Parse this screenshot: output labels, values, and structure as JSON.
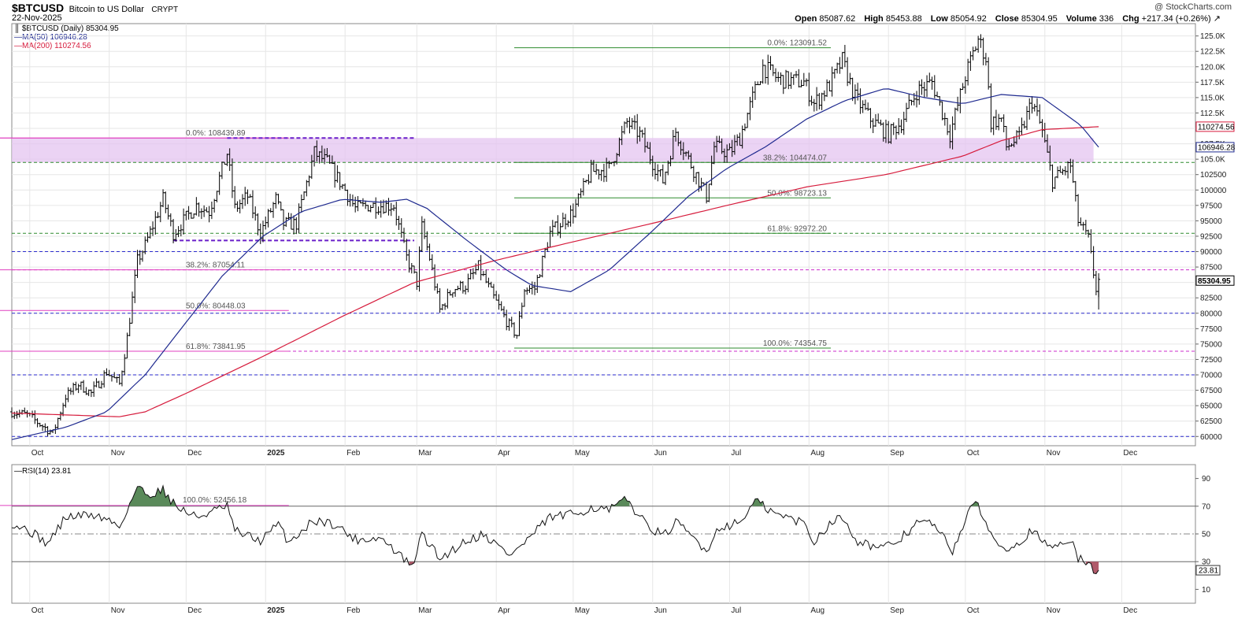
{
  "header": {
    "symbol": "$BTCUSD",
    "description": "Bitcoin to US Dollar",
    "exchange": "CRYPT",
    "date": "22-Nov-2025",
    "brand": "@ StockCharts.com",
    "open_label": "Open",
    "open": "85087.62",
    "high_label": "High",
    "high": "85453.88",
    "low_label": "Low",
    "low": "85054.92",
    "close_label": "Close",
    "close": "85304.95",
    "volume_label": "Volume",
    "volume": "336",
    "chg_label": "Chg",
    "chg": "+217.34 (+0.26%)",
    "chg_arrow": "up-arrow-icon"
  },
  "legend": {
    "price": "$BTCUSD (Daily) 85304.95",
    "ma50": "MA(50) 106946.28",
    "ma200": "MA(200) 110274.56",
    "rsi": "RSI(14) 23.81"
  },
  "colors": {
    "price_bars": "#000000",
    "ma50": "#1f2a8f",
    "ma200": "#d61b3c",
    "fib_left": "#e040c0",
    "fib_right": "#2e8b2e",
    "dash_blue": "#2a2acd",
    "dash_green": "#2e8b2e",
    "dash_magenta": "#cc2ccc",
    "zone": "#e4c4f0",
    "rsi_over": "#5a8a5a",
    "rsi_under": "#b05a6a"
  },
  "chart_data": [
    {
      "type": "ohlc",
      "title": "$BTCUSD (Daily) 85304.95",
      "ylim": [
        58500,
        127000
      ],
      "y_ticks": [
        60000,
        62500,
        65000,
        67500,
        70000,
        72500,
        75000,
        77500,
        80000,
        82500,
        85000,
        87500,
        90000,
        92500,
        95000,
        97500,
        100000,
        102500,
        105000,
        107500,
        110000,
        112500,
        115000,
        117500,
        120000,
        122500,
        125000
      ],
      "y_tick_labels": [
        "60000",
        "62500",
        "65000",
        "67500",
        "70000",
        "72500",
        "75000",
        "77500",
        "80000",
        "82500",
        "85000",
        "87500",
        "90000",
        "92500",
        "95000",
        "97500",
        "100000",
        "102500",
        "105.0K",
        "107.5K",
        "110.0K",
        "112.5K",
        "115.0K",
        "117.5K",
        "120.0K",
        "122.5K",
        "125.0K"
      ],
      "x_range": [
        "2024-09-24",
        "2025-12-15"
      ],
      "x_tick_labels": [
        {
          "date": "2024-10-01",
          "label": "Oct"
        },
        {
          "date": "2024-11-01",
          "label": "Nov"
        },
        {
          "date": "2024-12-01",
          "label": "Dec"
        },
        {
          "date": "2025-01-01",
          "label": "2025"
        },
        {
          "date": "2025-02-01",
          "label": "Feb"
        },
        {
          "date": "2025-03-01",
          "label": "Mar"
        },
        {
          "date": "2025-04-01",
          "label": "Apr"
        },
        {
          "date": "2025-05-01",
          "label": "May"
        },
        {
          "date": "2025-06-01",
          "label": "Jun"
        },
        {
          "date": "2025-07-01",
          "label": "Jul"
        },
        {
          "date": "2025-08-01",
          "label": "Aug"
        },
        {
          "date": "2025-09-01",
          "label": "Sep"
        },
        {
          "date": "2025-10-01",
          "label": "Oct"
        },
        {
          "date": "2025-11-01",
          "label": "Nov"
        },
        {
          "date": "2025-12-01",
          "label": "Dec"
        }
      ],
      "last_date": "2025-11-22",
      "close_keypoints": [
        [
          "2024-09-24",
          64000
        ],
        [
          "2024-09-30",
          63500
        ],
        [
          "2024-10-05",
          62000
        ],
        [
          "2024-10-10",
          60500
        ],
        [
          "2024-10-15",
          66500
        ],
        [
          "2024-10-20",
          68500
        ],
        [
          "2024-10-25",
          67000
        ],
        [
          "2024-10-31",
          70500
        ],
        [
          "2024-11-05",
          68500
        ],
        [
          "2024-11-08",
          76000
        ],
        [
          "2024-11-12",
          88500
        ],
        [
          "2024-11-15",
          91000
        ],
        [
          "2024-11-22",
          98500
        ],
        [
          "2024-11-26",
          93000
        ],
        [
          "2024-12-05",
          97500
        ],
        [
          "2024-12-10",
          96500
        ],
        [
          "2024-12-17",
          106000
        ],
        [
          "2024-12-20",
          97000
        ],
        [
          "2024-12-25",
          99000
        ],
        [
          "2024-12-30",
          93000
        ],
        [
          "2025-01-05",
          98500
        ],
        [
          "2025-01-08",
          94500
        ],
        [
          "2025-01-13",
          94500
        ],
        [
          "2025-01-20",
          106000
        ],
        [
          "2025-01-25",
          104500
        ],
        [
          "2025-02-01",
          100000
        ],
        [
          "2025-02-05",
          97000
        ],
        [
          "2025-02-10",
          97500
        ],
        [
          "2025-02-20",
          97500
        ],
        [
          "2025-02-25",
          89000
        ],
        [
          "2025-03-01",
          85000
        ],
        [
          "2025-03-03",
          94000
        ],
        [
          "2025-03-06",
          89000
        ],
        [
          "2025-03-10",
          80500
        ],
        [
          "2025-03-15",
          84000
        ],
        [
          "2025-03-20",
          84500
        ],
        [
          "2025-03-25",
          87500
        ],
        [
          "2025-03-31",
          82500
        ],
        [
          "2025-04-06",
          78000
        ],
        [
          "2025-04-09",
          76500
        ],
        [
          "2025-04-12",
          84000
        ],
        [
          "2025-04-16",
          84000
        ],
        [
          "2025-04-22",
          93000
        ],
        [
          "2025-05-01",
          96500
        ],
        [
          "2025-05-08",
          103000
        ],
        [
          "2025-05-15",
          103500
        ],
        [
          "2025-05-22",
          111000
        ],
        [
          "2025-05-27",
          109000
        ],
        [
          "2025-06-01",
          104500
        ],
        [
          "2025-06-05",
          101500
        ],
        [
          "2025-06-10",
          109500
        ],
        [
          "2025-06-15",
          105000
        ],
        [
          "2025-06-22",
          99000
        ],
        [
          "2025-06-25",
          107000
        ],
        [
          "2025-07-01",
          106000
        ],
        [
          "2025-07-05",
          108500
        ],
        [
          "2025-07-14",
          120000
        ],
        [
          "2025-07-20",
          118000
        ],
        [
          "2025-07-30",
          117500
        ],
        [
          "2025-08-03",
          114000
        ],
        [
          "2025-08-09",
          117000
        ],
        [
          "2025-08-14",
          121000
        ],
        [
          "2025-08-19",
          115000
        ],
        [
          "2025-08-25",
          111500
        ],
        [
          "2025-09-01",
          109000
        ],
        [
          "2025-09-06",
          111000
        ],
        [
          "2025-09-12",
          116000
        ],
        [
          "2025-09-18",
          117500
        ],
        [
          "2025-09-25",
          109000
        ],
        [
          "2025-10-01",
          118500
        ],
        [
          "2025-10-06",
          124500
        ],
        [
          "2025-10-09",
          121500
        ],
        [
          "2025-10-11",
          111000
        ],
        [
          "2025-10-15",
          111500
        ],
        [
          "2025-10-17",
          107000
        ],
        [
          "2025-10-22",
          108500
        ],
        [
          "2025-10-27",
          114500
        ],
        [
          "2025-10-31",
          109500
        ],
        [
          "2025-11-04",
          101500
        ],
        [
          "2025-11-08",
          103000
        ],
        [
          "2025-11-11",
          104000
        ],
        [
          "2025-11-14",
          95000
        ],
        [
          "2025-11-18",
          92000
        ],
        [
          "2025-11-20",
          86500
        ],
        [
          "2025-11-21",
          84000
        ],
        [
          "2025-11-22",
          85300
        ]
      ],
      "ma50_keypoints": [
        [
          "2024-09-24",
          59500
        ],
        [
          "2024-10-15",
          61500
        ],
        [
          "2024-10-31",
          64000
        ],
        [
          "2024-11-15",
          70000
        ],
        [
          "2024-11-30",
          78000
        ],
        [
          "2024-12-15",
          86000
        ],
        [
          "2024-12-31",
          92500
        ],
        [
          "2025-01-15",
          96500
        ],
        [
          "2025-01-31",
          98500
        ],
        [
          "2025-02-15",
          98000
        ],
        [
          "2025-02-25",
          98500
        ],
        [
          "2025-03-05",
          97000
        ],
        [
          "2025-03-20",
          92000
        ],
        [
          "2025-04-05",
          87000
        ],
        [
          "2025-04-15",
          84500
        ],
        [
          "2025-04-30",
          83500
        ],
        [
          "2025-05-15",
          87000
        ],
        [
          "2025-05-31",
          93000
        ],
        [
          "2025-06-15",
          99000
        ],
        [
          "2025-06-30",
          103500
        ],
        [
          "2025-07-15",
          107000
        ],
        [
          "2025-07-31",
          111500
        ],
        [
          "2025-08-15",
          114500
        ],
        [
          "2025-08-31",
          116500
        ],
        [
          "2025-09-15",
          115000
        ],
        [
          "2025-09-30",
          114000
        ],
        [
          "2025-10-15",
          115500
        ],
        [
          "2025-10-31",
          115000
        ],
        [
          "2025-11-15",
          110500
        ],
        [
          "2025-11-22",
          106946
        ]
      ],
      "ma200_keypoints": [
        [
          "2024-09-24",
          63800
        ],
        [
          "2024-10-15",
          63500
        ],
        [
          "2024-11-05",
          63200
        ],
        [
          "2024-11-15",
          64000
        ],
        [
          "2024-12-01",
          67000
        ],
        [
          "2024-12-31",
          73000
        ],
        [
          "2025-01-31",
          79500
        ],
        [
          "2025-02-28",
          85000
        ],
        [
          "2025-03-31",
          88500
        ],
        [
          "2025-04-30",
          91500
        ],
        [
          "2025-05-31",
          94500
        ],
        [
          "2025-06-30",
          97500
        ],
        [
          "2025-07-31",
          100500
        ],
        [
          "2025-08-31",
          102500
        ],
        [
          "2025-09-30",
          105500
        ],
        [
          "2025-10-15",
          108000
        ],
        [
          "2025-10-31",
          109800
        ],
        [
          "2025-11-22",
          110274
        ]
      ],
      "levels": [
        {
          "value": 60000,
          "style": "dash_blue"
        },
        {
          "value": 70000,
          "style": "dash_blue"
        },
        {
          "value": 80000,
          "style": "dash_blue"
        },
        {
          "value": 90000,
          "style": "dash_blue"
        },
        {
          "value": 73841.95,
          "style": "dash_magenta"
        },
        {
          "value": 87054.11,
          "style": "dash_magenta"
        },
        {
          "value": 92972.2,
          "style": "dash_green"
        },
        {
          "value": 104474.07,
          "style": "dash_green"
        }
      ],
      "zone": {
        "from_date": "2024-09-24",
        "to_date": "2025-11-20",
        "low": 104474.07,
        "high": 108439.89
      },
      "fib_left": {
        "from_date": "2024-09-24",
        "to_date": "2025-01-07",
        "levels": [
          {
            "label": "0.0%: 108439.89",
            "value": 108439.89
          },
          {
            "label": "38.2%: 87054.11",
            "value": 87054.11
          },
          {
            "label": "50.0%: 80448.03",
            "value": 80448.03
          },
          {
            "label": "61.8%: 73841.95",
            "value": 73841.95
          }
        ]
      },
      "fib_right": {
        "from_date": "2025-04-08",
        "to_date": "2025-07-15",
        "levels": [
          {
            "label": "0.0%: 123091.52",
            "value": 123091.52
          },
          {
            "label": "38.2%: 104474.07",
            "value": 104474.07
          },
          {
            "label": "50.0%: 98723.13",
            "value": 98723.13
          },
          {
            "label": "61.8%: 92972.20",
            "value": 92972.2
          },
          {
            "label": "100.0%: 74354.75",
            "value": 74354.75
          }
        ]
      },
      "purple_dashes": [
        {
          "from_date": "2024-12-17",
          "to_date": "2025-02-28",
          "value": 108439.89
        },
        {
          "from_date": "2024-11-26",
          "to_date": "2025-02-28",
          "value": 91800
        }
      ],
      "price_tags": [
        {
          "label": "110274.56",
          "value": 110274.56,
          "style": "ma200"
        },
        {
          "label": "106946.28",
          "value": 106946.28,
          "style": "ma50"
        },
        {
          "label": "85304.95",
          "value": 85304.95,
          "style": "price_bars"
        }
      ]
    },
    {
      "type": "line",
      "title": "RSI(14) 23.81",
      "ylim": [
        0,
        100
      ],
      "y_ticks": [
        10,
        30,
        50,
        70,
        90
      ],
      "reference_lines": [
        30,
        50,
        70
      ],
      "annotation": {
        "label": "100.0%: 52456.18",
        "value": 70.5,
        "from_date": "2024-09-24",
        "to_date": "2025-01-07"
      },
      "last_value": 23.81,
      "last_value_label": "23.81",
      "keypoints": [
        [
          "2024-09-24",
          58
        ],
        [
          "2024-10-01",
          52
        ],
        [
          "2024-10-08",
          43
        ],
        [
          "2024-10-15",
          62
        ],
        [
          "2024-10-25",
          64
        ],
        [
          "2024-11-01",
          60
        ],
        [
          "2024-11-05",
          55
        ],
        [
          "2024-11-12",
          84
        ],
        [
          "2024-11-16",
          78
        ],
        [
          "2024-11-22",
          82
        ],
        [
          "2024-11-27",
          70
        ],
        [
          "2024-12-05",
          62
        ],
        [
          "2024-12-17",
          70
        ],
        [
          "2024-12-20",
          52
        ],
        [
          "2024-12-30",
          45
        ],
        [
          "2025-01-06",
          57
        ],
        [
          "2025-01-10",
          44
        ],
        [
          "2025-01-20",
          60
        ],
        [
          "2025-01-28",
          57
        ],
        [
          "2025-02-05",
          46
        ],
        [
          "2025-02-15",
          47
        ],
        [
          "2025-02-25",
          30
        ],
        [
          "2025-02-27",
          25
        ],
        [
          "2025-03-03",
          50
        ],
        [
          "2025-03-10",
          32
        ],
        [
          "2025-03-20",
          45
        ],
        [
          "2025-03-27",
          50
        ],
        [
          "2025-04-06",
          35
        ],
        [
          "2025-04-10",
          40
        ],
        [
          "2025-04-22",
          62
        ],
        [
          "2025-05-01",
          64
        ],
        [
          "2025-05-08",
          69
        ],
        [
          "2025-05-15",
          67
        ],
        [
          "2025-05-22",
          75
        ],
        [
          "2025-05-28",
          60
        ],
        [
          "2025-06-05",
          48
        ],
        [
          "2025-06-10",
          58
        ],
        [
          "2025-06-16",
          49
        ],
        [
          "2025-06-22",
          38
        ],
        [
          "2025-06-27",
          55
        ],
        [
          "2025-07-05",
          58
        ],
        [
          "2025-07-11",
          74
        ],
        [
          "2025-07-18",
          65
        ],
        [
          "2025-07-30",
          58
        ],
        [
          "2025-08-03",
          44
        ],
        [
          "2025-08-09",
          58
        ],
        [
          "2025-08-14",
          62
        ],
        [
          "2025-08-20",
          45
        ],
        [
          "2025-08-30",
          39
        ],
        [
          "2025-09-06",
          47
        ],
        [
          "2025-09-12",
          58
        ],
        [
          "2025-09-18",
          58
        ],
        [
          "2025-09-26",
          38
        ],
        [
          "2025-10-02",
          65
        ],
        [
          "2025-10-06",
          72
        ],
        [
          "2025-10-10",
          52
        ],
        [
          "2025-10-16",
          40
        ],
        [
          "2025-10-22",
          44
        ],
        [
          "2025-10-27",
          53
        ],
        [
          "2025-11-02",
          40
        ],
        [
          "2025-11-08",
          44
        ],
        [
          "2025-11-11",
          47
        ],
        [
          "2025-11-14",
          32
        ],
        [
          "2025-11-18",
          29
        ],
        [
          "2025-11-20",
          24
        ],
        [
          "2025-11-22",
          23.81
        ]
      ]
    }
  ]
}
